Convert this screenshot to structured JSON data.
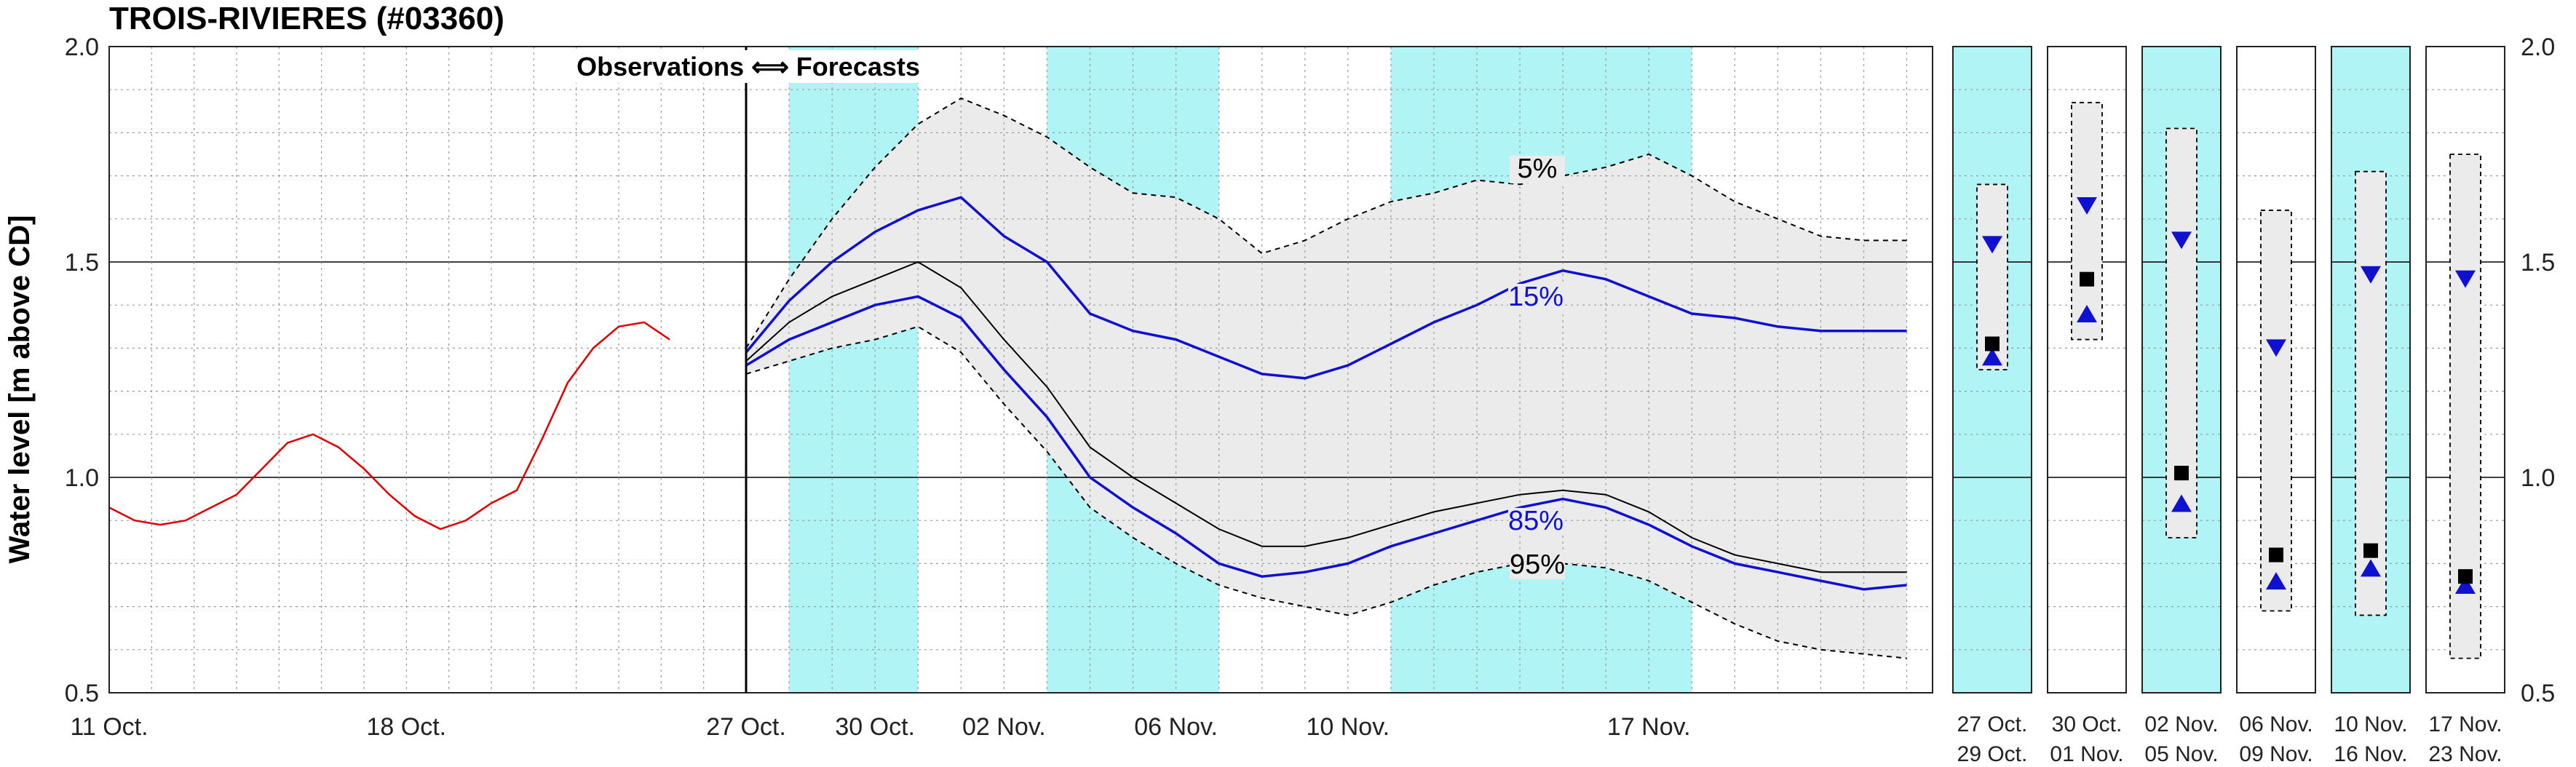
{
  "chart_data": {
    "type": "line",
    "title": "TROIS-RIVIERES (#03360)",
    "ylabel": "Water level [m above CD]",
    "ylim": [
      0.5,
      2.0
    ],
    "yticks": [
      0.5,
      1.0,
      1.5,
      2.0
    ],
    "ytick_labels": [
      "0.5",
      "1.0",
      "1.5",
      "2.0"
    ],
    "grid": true,
    "annotation": "Observations ⟺ Forecasts",
    "observations_xticks": [
      {
        "day": 0,
        "label": "11 Oct."
      },
      {
        "day": 7,
        "label": "18 Oct."
      }
    ],
    "forecast_xticks": [
      {
        "day": 0,
        "label": "27 Oct."
      },
      {
        "day": 3,
        "label": "30 Oct."
      },
      {
        "day": 6,
        "label": "02 Nov."
      },
      {
        "day": 10,
        "label": "06 Nov."
      },
      {
        "day": 14,
        "label": "10 Nov."
      },
      {
        "day": 21,
        "label": "17 Nov."
      }
    ],
    "highlight_bands_days": [
      [
        1,
        4
      ],
      [
        7,
        11
      ],
      [
        15,
        22
      ]
    ],
    "observed": {
      "color": "#e00000",
      "x_days": [
        0,
        0.6,
        1.2,
        1.8,
        2.4,
        3.0,
        3.6,
        4.2,
        4.8,
        5.4,
        6.0,
        6.6,
        7.2,
        7.8,
        8.4,
        9.0,
        9.6,
        10.2,
        10.8,
        11.4,
        12.0,
        12.6,
        13.2,
        13.8,
        14.4,
        15.0
      ],
      "y": [
        0.93,
        0.9,
        0.89,
        0.9,
        0.93,
        0.96,
        1.02,
        1.08,
        1.1,
        1.07,
        1.02,
        0.96,
        0.91,
        0.88,
        0.9,
        0.94,
        0.97,
        1.09,
        1.22,
        1.3,
        1.35,
        1.36,
        1.32,
        null,
        null,
        null
      ]
    },
    "forecast_x_days": [
      0,
      1,
      2,
      3,
      4,
      5,
      6,
      7,
      8,
      9,
      10,
      11,
      12,
      13,
      14,
      15,
      16,
      17,
      18,
      19,
      20,
      21,
      22,
      23,
      24,
      25,
      26,
      27
    ],
    "series": [
      {
        "name": "5%",
        "color": "#000000",
        "dash": true,
        "values": [
          1.3,
          1.46,
          1.6,
          1.72,
          1.82,
          1.88,
          1.84,
          1.79,
          1.72,
          1.66,
          1.65,
          1.6,
          1.52,
          1.55,
          1.6,
          1.64,
          1.66,
          1.69,
          1.68,
          1.7,
          1.72,
          1.75,
          1.7,
          1.64,
          1.6,
          1.56,
          1.55,
          1.55
        ]
      },
      {
        "name": "15%",
        "color": "#1010d0",
        "dash": false,
        "values": [
          1.29,
          1.41,
          1.5,
          1.57,
          1.62,
          1.65,
          1.56,
          1.5,
          1.38,
          1.34,
          1.32,
          1.28,
          1.24,
          1.23,
          1.26,
          1.31,
          1.36,
          1.4,
          1.45,
          1.48,
          1.46,
          1.42,
          1.38,
          1.37,
          1.35,
          1.34,
          1.34,
          1.34
        ]
      },
      {
        "name": "",
        "color": "#000000",
        "dash": false,
        "values": [
          1.27,
          1.36,
          1.42,
          1.46,
          1.5,
          1.44,
          1.32,
          1.21,
          1.07,
          1.0,
          0.94,
          0.88,
          0.84,
          0.84,
          0.86,
          0.89,
          0.92,
          0.94,
          0.96,
          0.97,
          0.96,
          0.92,
          0.86,
          0.82,
          0.8,
          0.78,
          0.78,
          0.78
        ]
      },
      {
        "name": "85%",
        "color": "#1010d0",
        "dash": false,
        "values": [
          1.26,
          1.32,
          1.36,
          1.4,
          1.42,
          1.37,
          1.25,
          1.14,
          1.0,
          0.93,
          0.87,
          0.8,
          0.77,
          0.78,
          0.8,
          0.84,
          0.87,
          0.9,
          0.93,
          0.95,
          0.93,
          0.89,
          0.84,
          0.8,
          0.78,
          0.76,
          0.74,
          0.75
        ]
      },
      {
        "name": "95%",
        "color": "#000000",
        "dash": true,
        "values": [
          1.24,
          1.27,
          1.3,
          1.32,
          1.35,
          1.29,
          1.17,
          1.06,
          0.93,
          0.86,
          0.8,
          0.75,
          0.72,
          0.7,
          0.68,
          0.71,
          0.75,
          0.78,
          0.8,
          0.8,
          0.79,
          0.76,
          0.71,
          0.66,
          0.62,
          0.6,
          0.59,
          0.58
        ]
      }
    ],
    "period_panels": [
      {
        "label_top": "27 Oct.",
        "label_bottom": "29 Oct.",
        "highlight": true,
        "box": [
          1.25,
          1.68
        ],
        "mean": 1.31,
        "up": 1.28,
        "down": 1.54
      },
      {
        "label_top": "30 Oct.",
        "label_bottom": "01 Nov.",
        "highlight": false,
        "box": [
          1.32,
          1.87
        ],
        "mean": 1.46,
        "up": 1.38,
        "down": 1.63
      },
      {
        "label_top": "02 Nov.",
        "label_bottom": "05 Nov.",
        "highlight": true,
        "box": [
          0.86,
          1.81
        ],
        "mean": 1.01,
        "up": 0.94,
        "down": 1.55
      },
      {
        "label_top": "06 Nov.",
        "label_bottom": "09 Nov.",
        "highlight": false,
        "box": [
          0.69,
          1.62
        ],
        "mean": 0.82,
        "up": 0.76,
        "down": 1.3
      },
      {
        "label_top": "10 Nov.",
        "label_bottom": "16 Nov.",
        "highlight": true,
        "box": [
          0.68,
          1.71
        ],
        "mean": 0.83,
        "up": 0.79,
        "down": 1.47
      },
      {
        "label_top": "17 Nov.",
        "label_bottom": "23 Nov.",
        "highlight": false,
        "box": [
          0.58,
          1.75
        ],
        "mean": 0.77,
        "up": 0.75,
        "down": 1.46
      }
    ],
    "colors": {
      "band": "#b0f4f6",
      "envelope": "#ebebeb",
      "observed": "#e00000",
      "forecast_pct": "#1010d0",
      "marker_blue": "#1010d0",
      "marker_black": "#000000"
    }
  }
}
